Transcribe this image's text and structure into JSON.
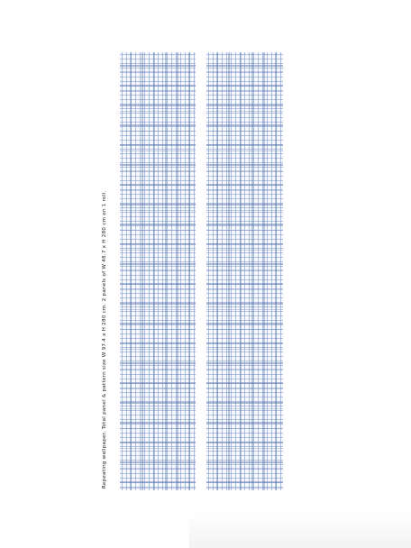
{
  "product": {
    "caption": "Repeating wallpaper. Total panel & pattern size W 97.4 x H 280 cm. 2 panels of W 48.7 x H 280 cm on 1 roll.",
    "panel_color": "#6e8cc3",
    "background_color": "#ffffff"
  }
}
